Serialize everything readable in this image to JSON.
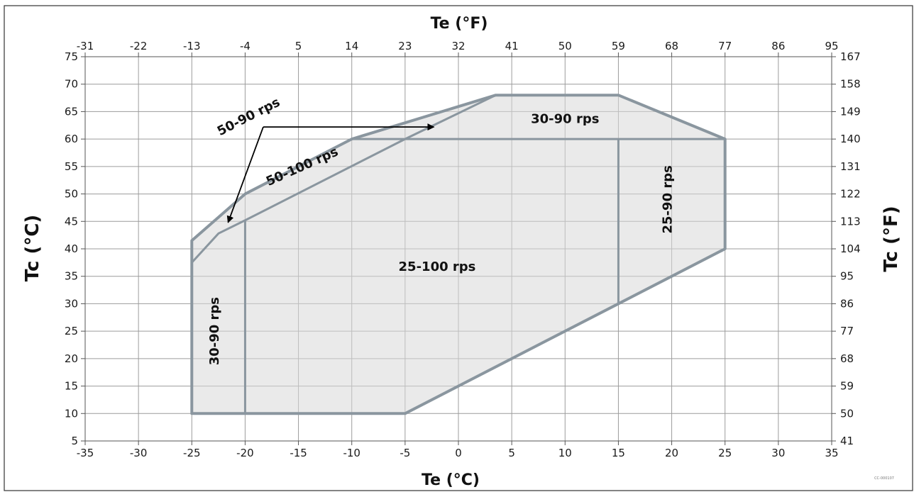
{
  "chart_data": {
    "type": "area",
    "x_bottom": {
      "label": "Te (°C)",
      "range": [
        -35,
        35
      ],
      "ticks": [
        -35,
        -30,
        -25,
        -20,
        -15,
        -10,
        -5,
        0,
        5,
        10,
        15,
        20,
        25,
        30,
        35
      ]
    },
    "x_top": {
      "label": "Te (°F)",
      "ticks": [
        -31,
        -22,
        -13,
        -4,
        5,
        14,
        23,
        32,
        41,
        50,
        59,
        68,
        77,
        86,
        95
      ]
    },
    "y_left": {
      "label": "Tc (°C)",
      "range": [
        5,
        75
      ],
      "ticks": [
        5,
        10,
        15,
        20,
        25,
        30,
        35,
        40,
        45,
        50,
        55,
        60,
        65,
        70,
        75
      ]
    },
    "y_right": {
      "label": "Tc (°F)",
      "ticks": [
        41,
        50,
        59,
        68,
        77,
        86,
        95,
        104,
        113,
        122,
        131,
        140,
        149,
        158,
        167
      ]
    },
    "grid": true,
    "envelope": [
      [
        -25,
        10
      ],
      [
        -5,
        10
      ],
      [
        15,
        30
      ],
      [
        25,
        40
      ],
      [
        25,
        60
      ],
      [
        15,
        68
      ],
      [
        3.5,
        68
      ],
      [
        -10,
        60
      ],
      [
        -20,
        50
      ],
      [
        -25,
        41.5
      ]
    ],
    "inner_boundary": [
      [
        -25,
        37.5
      ],
      [
        -22.5,
        42.8
      ],
      [
        -20,
        45.2
      ],
      [
        -5,
        60
      ],
      [
        3.5,
        68
      ]
    ],
    "dividers": [
      [
        [
          -20,
          10
        ],
        [
          -20,
          45.2
        ]
      ],
      [
        [
          15,
          30
        ],
        [
          15,
          60
        ]
      ],
      [
        [
          -10,
          60
        ],
        [
          25,
          60
        ]
      ]
    ],
    "regions": [
      {
        "name": "25-100 rps",
        "x": -2,
        "y": 36
      },
      {
        "name": "30-90 rps",
        "x": -22.5,
        "y": 25
      },
      {
        "name": "30-90 rps",
        "x": 10,
        "y": 62.9
      },
      {
        "name": "25-90 rps",
        "x": 20,
        "y": 49
      },
      {
        "name": "50-100 rps",
        "x": -14.5,
        "y": 54.3
      },
      {
        "name": "50-90 rps",
        "x": -19.5,
        "y": 63.4
      }
    ],
    "arrow_annotations": {
      "from": [
        -18.3,
        62.2
      ],
      "to": [
        [
          -21.6,
          44.8
        ],
        [
          -2.3,
          62.2
        ]
      ]
    },
    "code_text": "CC-000107"
  }
}
